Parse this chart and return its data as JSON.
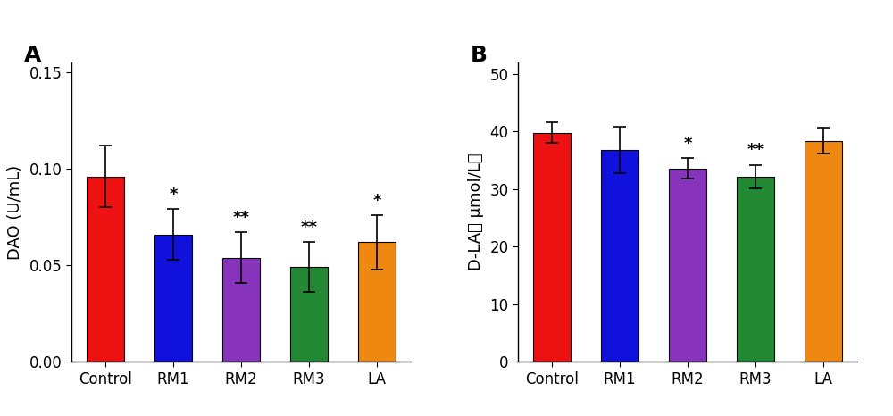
{
  "panel_A": {
    "categories": [
      "Control",
      "RM1",
      "RM2",
      "RM3",
      "LA"
    ],
    "values": [
      0.096,
      0.066,
      0.054,
      0.049,
      0.062
    ],
    "errors": [
      0.016,
      0.013,
      0.013,
      0.013,
      0.014
    ],
    "colors": [
      "#EE1111",
      "#1111DD",
      "#8833BB",
      "#228833",
      "#EE8811"
    ],
    "significance": [
      "",
      "*",
      "**",
      "**",
      "*"
    ],
    "ylabel": "DAO (U/mL)",
    "ylim": [
      0,
      0.155
    ],
    "yticks": [
      0.0,
      0.05,
      0.1,
      0.15
    ],
    "ytick_labels": [
      "0.00",
      "0.05",
      "0.10",
      "0.15"
    ],
    "panel_label": "A"
  },
  "panel_B": {
    "categories": [
      "Control",
      "RM1",
      "RM2",
      "RM3",
      "LA"
    ],
    "values": [
      39.8,
      36.8,
      33.6,
      32.2,
      38.4
    ],
    "errors": [
      1.8,
      4.0,
      1.8,
      2.0,
      2.2
    ],
    "colors": [
      "#EE1111",
      "#1111DD",
      "#8833BB",
      "#228833",
      "#EE8811"
    ],
    "significance": [
      "",
      "",
      "*",
      "**",
      ""
    ],
    "ylabel": "D-LA（ μmol/L）",
    "ylim": [
      0,
      52
    ],
    "yticks": [
      0,
      10,
      20,
      30,
      40,
      50
    ],
    "ytick_labels": [
      "0",
      "10",
      "20",
      "30",
      "40",
      "50"
    ],
    "panel_label": "B"
  },
  "bar_width": 0.55,
  "fontsize_label": 13,
  "fontsize_tick": 12,
  "fontsize_panel": 18,
  "fontsize_sig": 13,
  "edgecolor": "black",
  "capsize": 5
}
